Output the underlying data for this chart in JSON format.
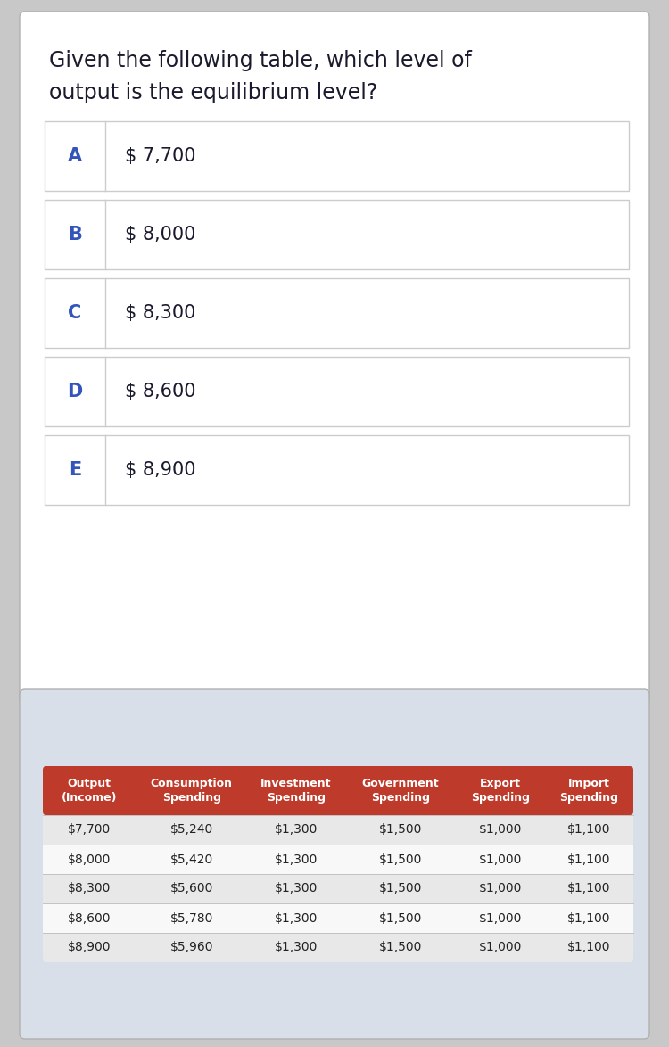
{
  "title_line1": "Given the following table, which level of",
  "title_line2": "output is the equilibrium level?",
  "title_fontsize": 17,
  "options": [
    {
      "letter": "A",
      "value": "$ 7,700"
    },
    {
      "letter": "B",
      "value": "$ 8,000"
    },
    {
      "letter": "C",
      "value": "$ 8,300"
    },
    {
      "letter": "D",
      "value": "$ 8,600"
    },
    {
      "letter": "E",
      "value": "$ 8,900"
    }
  ],
  "letter_color": "#3355bb",
  "option_text_color": "#1a1a2e",
  "option_bg": "#ffffff",
  "option_border": "#cccccc",
  "table_header": [
    "Output\n(Income)",
    "Consumption\nSpending",
    "Investment\nSpending",
    "Government\nSpending",
    "Export\nSpending",
    "Import\nSpending"
  ],
  "table_header_bg": "#be3a2a",
  "table_header_color": "#ffffff",
  "table_rows": [
    [
      "$7,700",
      "$5,240",
      "$1,300",
      "$1,500",
      "$1,000",
      "$1,100"
    ],
    [
      "$8,000",
      "$5,420",
      "$1,300",
      "$1,500",
      "$1,000",
      "$1,100"
    ],
    [
      "$8,300",
      "$5,600",
      "$1,300",
      "$1,500",
      "$1,000",
      "$1,100"
    ],
    [
      "$8,600",
      "$5,780",
      "$1,300",
      "$1,500",
      "$1,000",
      "$1,100"
    ],
    [
      "$8,900",
      "$5,960",
      "$1,300",
      "$1,500",
      "$1,000",
      "$1,100"
    ]
  ],
  "table_row_colors": [
    "#e8e8e8",
    "#f8f8f8",
    "#e8e8e8",
    "#f8f8f8",
    "#e8e8e8"
  ],
  "table_text_color": "#222222",
  "outer_bg": "#c8c8c8",
  "white_panel_bg": "#ffffff",
  "table_section_bg": "#d8dfe8",
  "col_widths_rel": [
    1.05,
    1.25,
    1.1,
    1.25,
    1.0,
    1.0
  ]
}
